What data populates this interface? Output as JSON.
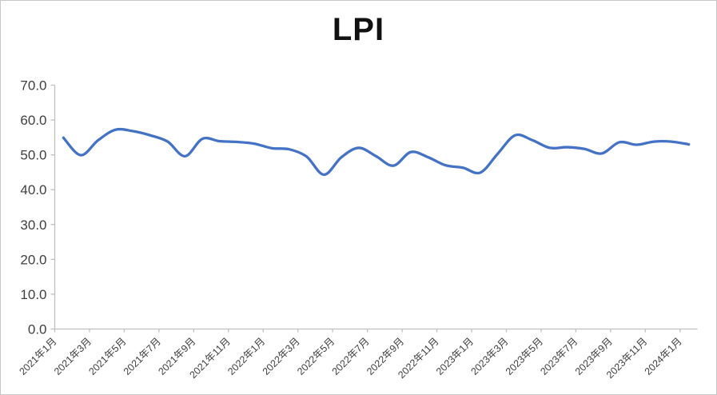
{
  "chart_data": {
    "type": "line",
    "title": "LPI",
    "smooth": true,
    "grid": false,
    "legend": "none",
    "xlabel": "",
    "ylabel": "",
    "ylim": [
      0,
      70
    ],
    "y_step": 10,
    "y_tick_labels": [
      "0.0",
      "10.0",
      "20.0",
      "30.0",
      "40.0",
      "50.0",
      "60.0",
      "70.0"
    ],
    "x_tick_labels": [
      "2021年1月",
      "2021年3月",
      "2021年5月",
      "2021年7月",
      "2021年9月",
      "2021年11月",
      "2022年1月",
      "2022年3月",
      "2022年5月",
      "2022年7月",
      "2022年9月",
      "2022年11月",
      "2023年1月",
      "2023年3月",
      "2023年5月",
      "2023年7月",
      "2023年9月",
      "2023年11月",
      "2024年1月"
    ],
    "x_tick_every_n_months": 2,
    "categories": [
      "2021年1月",
      "2021年2月",
      "2021年3月",
      "2021年4月",
      "2021年5月",
      "2021年6月",
      "2021年7月",
      "2021年8月",
      "2021年9月",
      "2021年10月",
      "2021年11月",
      "2021年12月",
      "2022年1月",
      "2022年2月",
      "2022年3月",
      "2022年4月",
      "2022年5月",
      "2022年6月",
      "2022年7月",
      "2022年8月",
      "2022年9月",
      "2022年10月",
      "2022年11月",
      "2022年12月",
      "2023年1月",
      "2023年2月",
      "2023年3月",
      "2023年4月",
      "2023年5月",
      "2023年6月",
      "2023年7月",
      "2023年8月",
      "2023年9月",
      "2023年10月",
      "2023年11月",
      "2023年12月",
      "2024年1月"
    ],
    "series": [
      {
        "name": "LPI",
        "color": "#4472C4",
        "values": [
          54.9,
          49.9,
          54.2,
          57.2,
          56.8,
          55.6,
          53.8,
          49.6,
          54.6,
          53.9,
          53.7,
          53.2,
          51.9,
          51.6,
          49.5,
          44.3,
          49.3,
          52.0,
          49.6,
          46.9,
          50.8,
          49.3,
          47.0,
          46.3,
          44.9,
          50.3,
          55.6,
          54.2,
          52.0,
          52.2,
          51.7,
          50.4,
          53.6,
          52.9,
          53.8,
          53.8,
          53.0
        ]
      }
    ]
  },
  "colors": {
    "line": "#4472C4",
    "axis": "#BFBFBF",
    "tick_text": "#3F3F3F",
    "title_text": "#111111",
    "background": "#FFFFFF",
    "frame_border": "#C6C6C6"
  }
}
